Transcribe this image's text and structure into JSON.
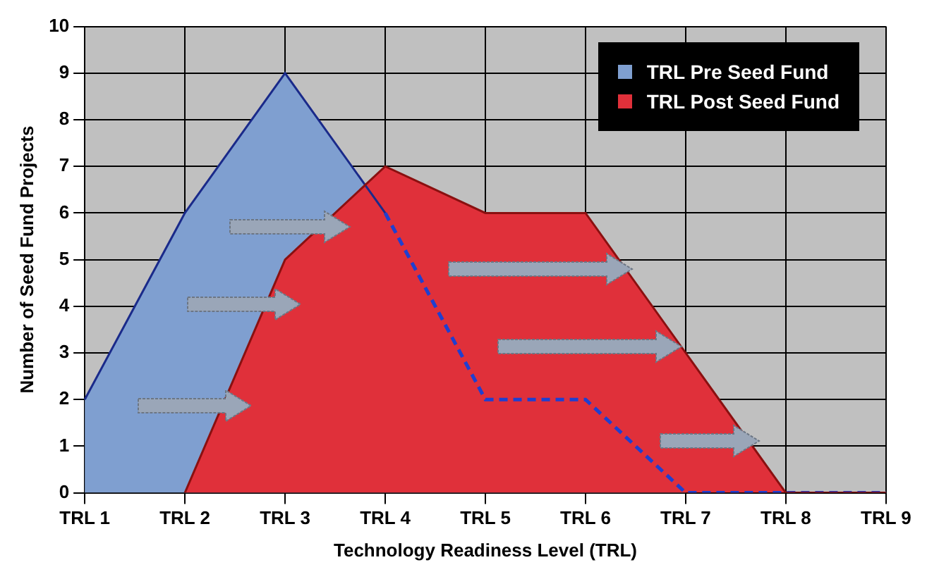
{
  "chart_data": {
    "type": "area",
    "xlabel": "Technology Readiness Level (TRL)",
    "ylabel": "Number of Seed Fund Projects",
    "categories": [
      "TRL 1",
      "TRL 2",
      "TRL 3",
      "TRL 4",
      "TRL 5",
      "TRL 6",
      "TRL 7",
      "TRL 8",
      "TRL 9"
    ],
    "series": [
      {
        "name": "TRL Pre Seed Fund",
        "color": "#7f9fd0",
        "values": [
          2,
          6,
          9,
          6,
          2,
          2,
          0,
          0,
          0
        ]
      },
      {
        "name": "TRL Post Seed Fund",
        "color": "#e0303a",
        "values": [
          null,
          0,
          5,
          7,
          6,
          6,
          3,
          0,
          0
        ]
      }
    ],
    "ylim": [
      0,
      10
    ],
    "yticks": [
      0,
      1,
      2,
      3,
      4,
      5,
      6,
      7,
      8,
      9,
      10
    ],
    "grid": true,
    "legend": "top right"
  }
}
